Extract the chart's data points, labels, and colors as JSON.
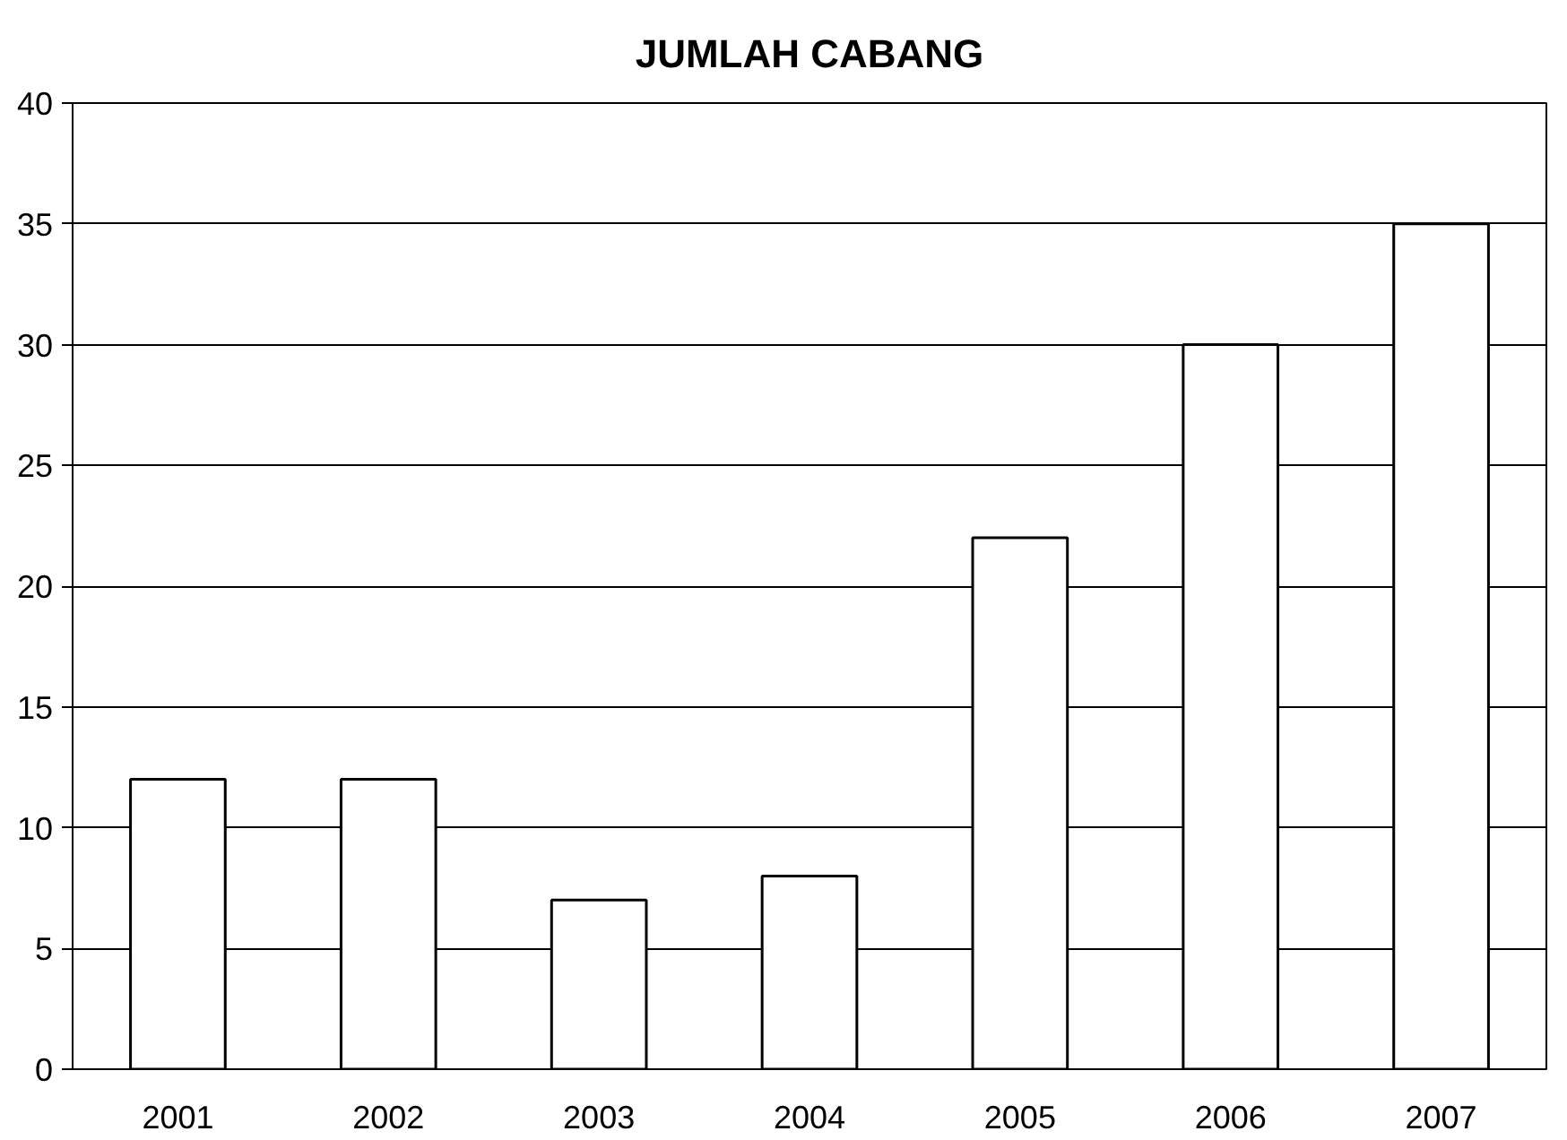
{
  "chart_data": {
    "type": "bar",
    "title": "JUMLAH CABANG",
    "categories": [
      "2001",
      "2002",
      "2003",
      "2004",
      "2005",
      "2006",
      "2007"
    ],
    "values": [
      12,
      12,
      7,
      8,
      22,
      30,
      35
    ],
    "color": "#ffffff",
    "ylim": [
      0,
      40
    ],
    "yticks": [
      0,
      5,
      10,
      15,
      20,
      25,
      30,
      35,
      40
    ],
    "grid": "y"
  }
}
